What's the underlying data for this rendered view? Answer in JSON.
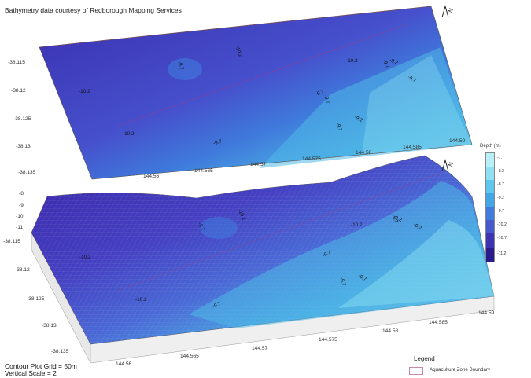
{
  "credit": "Bathymetry data courtesy of Redborough Mapping Services",
  "footer": {
    "contour_grid": "Contour Plot Grid = 50m",
    "vertical_scale": "Vertical Scale = 2"
  },
  "north_symbol": "N",
  "colors": {
    "deep": "#3b22a8",
    "mid_deep": "#4b5ad0",
    "mid": "#3f7cdc",
    "shallow": "#4fb8e6",
    "very_shallow": "#8fe0f2",
    "boundary": "#cc3366"
  },
  "top_map": {
    "y_ticks": [
      "-38.115",
      "-38.12",
      "-38.125",
      "-38.13",
      "-38.135"
    ],
    "x_ticks": [
      "144.56",
      "144.565",
      "144.57",
      "144.575",
      "144.58",
      "144.585",
      "144.59"
    ],
    "contour_labels": [
      "-9.7",
      "-10.2",
      "-10.2",
      "-10.2",
      "-10.2",
      "-9.7",
      "-9.7",
      "-9.7",
      "-9.7",
      "-9.2",
      "-9.7",
      "-9.7",
      "-9.2"
    ]
  },
  "surface": {
    "z_ticks": [
      "-8",
      "-9",
      "-10",
      "-11"
    ],
    "y_ticks": [
      "-38.115",
      "-38.12",
      "-38.125",
      "-38.13",
      "-38.135"
    ],
    "x_ticks_front": [
      "144.56",
      "144.565",
      "144.57",
      "144.575",
      "144.58",
      "144.585"
    ],
    "x_ticks_right": [
      "144.585",
      "144.59"
    ],
    "contour_labels": [
      "-9.7",
      "-10.2",
      "-10.2",
      "-10.2",
      "-10.2",
      "-9.7",
      "-9.7",
      "-9.7",
      "-9.2",
      "-9.7",
      "-9.7",
      "-9.2"
    ]
  },
  "depth_legend": {
    "title": "Depth (m)",
    "labels": [
      "-7.7",
      "-8.2",
      "-8.7",
      "-9.2",
      "-9.7",
      "-10.2",
      "-10.7",
      "-11.2"
    ],
    "colors": [
      "#b8f0f8",
      "#8fe0f2",
      "#5ec7ec",
      "#44a6e4",
      "#3f7cdc",
      "#4658cc",
      "#3e33b0",
      "#2a1a8c"
    ]
  },
  "legend": {
    "title": "Legend",
    "item": "Aquaculture Zone Boundary"
  }
}
